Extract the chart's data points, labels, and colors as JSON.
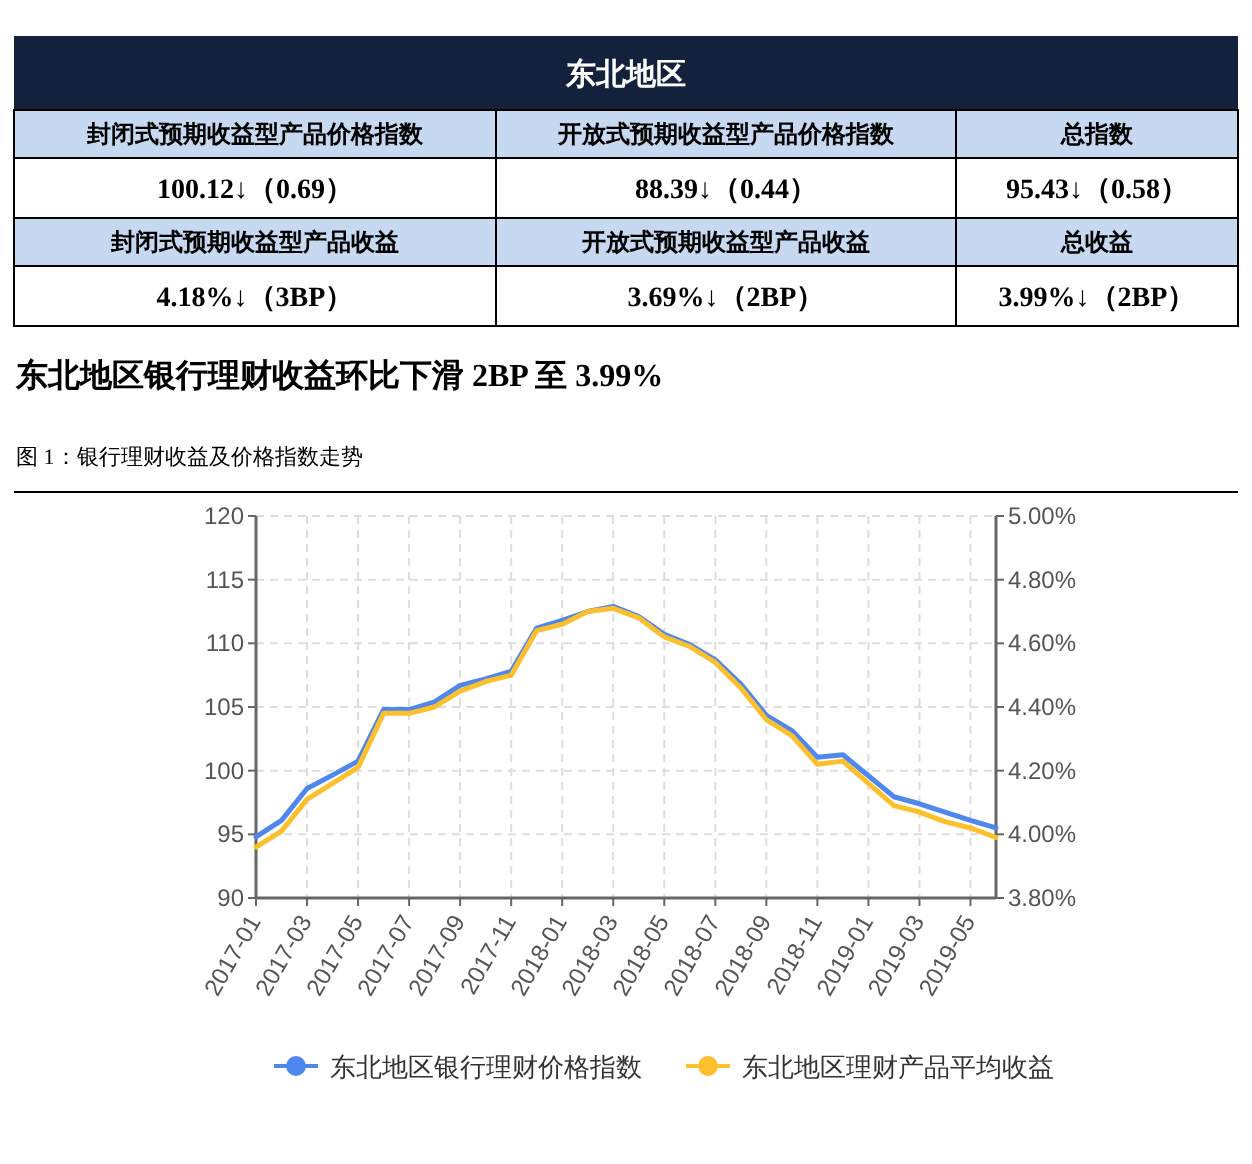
{
  "chart_data": [
    {
      "type": "other",
      "title": "东北地区",
      "annotations": [
        "封闭式预期收益型产品价格指数",
        "开放式预期收益型产品价格指数",
        "总指数",
        "100.12↓（0.69）",
        "88.39↓（0.44）",
        "95.43↓（0.58）",
        "封闭式预期收益型产品收益",
        "开放式预期收益型产品收益",
        "总收益",
        "4.18%↓（3BP）",
        "3.69%↓（2BP）",
        "3.99%↓（2BP）"
      ]
    },
    {
      "type": "line",
      "title": "东北地区银行理财收益环比下滑 2BP 至 3.99%",
      "subtitle": "图 1：银行理财收益及价格指数走势",
      "categories": [
        "2017-01",
        null,
        "2017-03",
        null,
        "2017-05",
        null,
        "2017-07",
        null,
        "2017-09",
        null,
        "2017-11",
        null,
        "2018-01",
        null,
        "2018-03",
        null,
        "2018-05",
        null,
        "2018-07",
        null,
        "2018-09",
        null,
        "2018-11",
        null,
        "2019-01",
        null,
        "2019-03",
        null,
        "2019-05",
        null
      ],
      "series": [
        {
          "name": "东北地区银行理财价格指数",
          "color": "#5087ec",
          "values": [
            94.8,
            96.1,
            98.6,
            99.65,
            100.75,
            104.8,
            104.8,
            105.4,
            106.7,
            107.2,
            107.8,
            111.2,
            111.8,
            112.5,
            112.9,
            112.1,
            110.7,
            109.9,
            108.7,
            106.8,
            104.35,
            103.15,
            101.05,
            101.25,
            99.6,
            97.95,
            97.4,
            96.75,
            96.1,
            95.5
          ]
        },
        {
          "name": "东北地区理财产品平均收益",
          "color": "#fcc02d",
          "axis": "y2",
          "values": [
            3.96,
            4.01,
            4.11,
            4.16,
            4.21,
            4.38,
            4.38,
            4.4,
            4.45,
            4.48,
            4.5,
            4.64,
            4.66,
            4.7,
            4.71,
            4.68,
            4.62,
            4.59,
            4.54,
            4.46,
            4.36,
            4.31,
            4.22,
            4.23,
            4.16,
            4.09,
            4.07,
            4.04,
            4.02,
            3.99
          ]
        }
      ],
      "ylim": [
        90,
        120
      ],
      "yticks": [
        90,
        95,
        100,
        105,
        110,
        115,
        120
      ],
      "y2lim": [
        3.8,
        5.0
      ],
      "y2ticks": [
        {
          "value": 3.8,
          "label": "3.80%"
        },
        {
          "value": 4.0,
          "label": "4.00%"
        },
        {
          "value": 4.2,
          "label": "4.20%"
        },
        {
          "value": 4.4,
          "label": "4.40%"
        },
        {
          "value": 4.6,
          "label": "4.60%"
        },
        {
          "value": 4.8,
          "label": "4.80%"
        },
        {
          "value": 5.0,
          "label": "5.00%"
        }
      ],
      "grid": true,
      "legend": "bottom",
      "marker": "none",
      "line_style": "solid"
    }
  ]
}
